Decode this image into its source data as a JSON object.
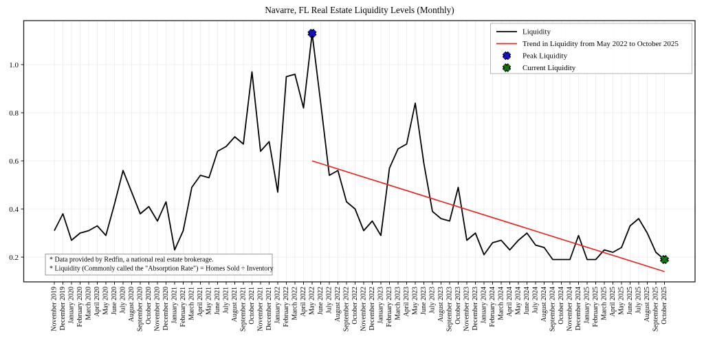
{
  "title": "Navarre, FL Real Estate Liquidity Levels (Monthly)",
  "footnotes": [
    "* Data provided by Redfin, a national real estate brokerage.",
    "* Liquidity (Commonly called the \"Absorption Rate\") = Homes Sold ÷ Inventory"
  ],
  "colors": {
    "line": "#000000",
    "trend": "#e62825",
    "peak": "#1313cd",
    "current": "#0e7a0e",
    "grid": "#ebebeb",
    "spine": "#1a1a1a",
    "legend_border": "#b3b3b3",
    "footnote_border": "#9a9a9a"
  },
  "chart_data": {
    "type": "line",
    "title": "Navarre, FL Real Estate Liquidity Levels (Monthly)",
    "xlabel": "",
    "ylabel": "",
    "yticks": [
      0.2,
      0.4,
      0.6,
      0.8,
      1.0
    ],
    "ylim": [
      0.1,
      1.18
    ],
    "grid": true,
    "legend_position": "upper right",
    "legend_labels": [
      "Liquidity",
      "Trend in Liquidity from May 2022 to October 2025",
      "Peak Liquidity",
      "Current Liquidity"
    ],
    "categories": [
      "November 2019",
      "December 2019",
      "January 2020",
      "February 2020",
      "March 2020",
      "April 2020",
      "May 2020",
      "June 2020",
      "July 2020",
      "August 2020",
      "September 2020",
      "October 2020",
      "November 2020",
      "December 2020",
      "January 2021",
      "February 2021",
      "March 2021",
      "April 2021",
      "May 2021",
      "June 2021",
      "July 2021",
      "August 2021",
      "September 2021",
      "October 2021",
      "November 2021",
      "December 2021",
      "January 2022",
      "February 2022",
      "March 2022",
      "April 2022",
      "May 2022",
      "June 2022",
      "July 2022",
      "August 2022",
      "September 2022",
      "October 2022",
      "November 2022",
      "December 2022",
      "January 2023",
      "February 2023",
      "March 2023",
      "April 2023",
      "May 2023",
      "June 2023",
      "July 2023",
      "August 2023",
      "September 2023",
      "October 2023",
      "November 2023",
      "December 2023",
      "January 2024",
      "February 2024",
      "March 2024",
      "April 2024",
      "May 2024",
      "June 2024",
      "July 2024",
      "August 2024",
      "September 2024",
      "October 2024",
      "November 2024",
      "December 2024",
      "January 2025",
      "February 2025",
      "March 2025",
      "April 2025",
      "May 2025",
      "June 2025",
      "July 2025",
      "August 2025",
      "September 2025",
      "October 2025"
    ],
    "series": [
      {
        "name": "Liquidity",
        "color": "#000000",
        "values": [
          0.31,
          0.38,
          0.27,
          0.3,
          0.31,
          0.33,
          0.29,
          0.42,
          0.56,
          0.47,
          0.38,
          0.41,
          0.35,
          0.43,
          0.23,
          0.31,
          0.49,
          0.54,
          0.53,
          0.64,
          0.66,
          0.7,
          0.67,
          0.97,
          0.64,
          0.68,
          0.47,
          0.95,
          0.96,
          0.82,
          1.13,
          0.84,
          0.54,
          0.56,
          0.43,
          0.4,
          0.31,
          0.35,
          0.29,
          0.57,
          0.65,
          0.67,
          0.84,
          0.59,
          0.39,
          0.36,
          0.35,
          0.49,
          0.27,
          0.3,
          0.21,
          0.26,
          0.27,
          0.23,
          0.27,
          0.3,
          0.25,
          0.24,
          0.19,
          0.19,
          0.19,
          0.29,
          0.19,
          0.19,
          0.23,
          0.22,
          0.24,
          0.33,
          0.36,
          0.3,
          0.22,
          0.19
        ]
      }
    ],
    "trend": {
      "label": "Trend in Liquidity from May 2022 to October 2025",
      "color": "#e62825",
      "start": {
        "category": "May 2022",
        "value": 0.6
      },
      "end": {
        "category": "October 2025",
        "value": 0.14
      }
    },
    "markers": [
      {
        "name": "Peak Liquidity",
        "category": "May 2022",
        "value": 1.13,
        "color": "#1313cd"
      },
      {
        "name": "Current Liquidity",
        "category": "October 2025",
        "value": 0.19,
        "color": "#0e7a0e"
      }
    ]
  }
}
